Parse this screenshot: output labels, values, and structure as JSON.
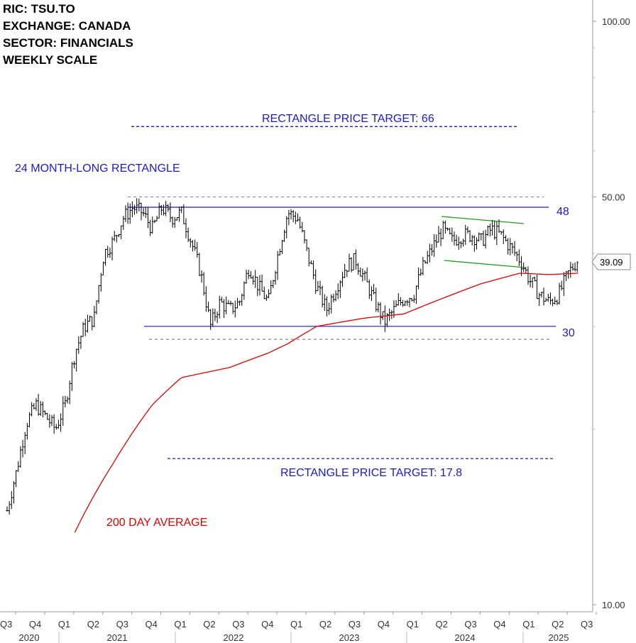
{
  "header": {
    "ric": "RIC:  TSU.TO",
    "exchange": "EXCHANGE:  CANADA",
    "sector": "SECTOR: FINANCIALS",
    "scale": "WEEKLY SCALE"
  },
  "chart_data": {
    "type": "candlestick",
    "y_scale": "log",
    "ylim": [
      10,
      100
    ],
    "y_ticks": [
      {
        "value": 10,
        "label": "10.00"
      },
      {
        "value": 50,
        "label": "50.00"
      },
      {
        "value": 100,
        "label": "100.00"
      }
    ],
    "last_price": {
      "value": 39.09,
      "label": "39.09"
    },
    "x_quarter_ticks": [
      "Q3",
      "Q4",
      "Q1",
      "Q2",
      "Q3",
      "Q4",
      "Q1",
      "Q2",
      "Q3",
      "Q4",
      "Q1",
      "Q2",
      "Q3",
      "Q4",
      "Q1",
      "Q2",
      "Q3",
      "Q4",
      "Q1",
      "Q2",
      "Q3"
    ],
    "x_year_labels": [
      "2020",
      "2021",
      "2022",
      "2023",
      "2024",
      "2025"
    ],
    "colors": {
      "price": "#000000",
      "ma": "#e00000",
      "rectangle": "#1a1ad0",
      "channel": "#1e9e1e",
      "target": "#1a1ad0",
      "text": "#1a1ad0",
      "ma_text": "#e00000"
    },
    "annotations": {
      "rectangle_label": "24 MONTH-LONG RECTANGLE",
      "target_up_label": "RECTANGLE PRICE TARGET: 66",
      "target_down_label": "RECTANGLE PRICE TARGET: 17.8",
      "ma_label": "200 DAY AVERAGE",
      "upper_label": "48",
      "lower_label": "30"
    },
    "levels": {
      "upper": 48,
      "lower": 30,
      "target_up": 66,
      "target_down": 17.8,
      "upper_dashed": 50,
      "lower_dashed": 28.5
    },
    "price_path": [
      [
        "2020-07",
        14.5
      ],
      [
        "2020-08",
        17
      ],
      [
        "2020-09",
        20.5
      ],
      [
        "2020-10",
        22
      ],
      [
        "2020-11",
        21
      ],
      [
        "2020-12",
        20
      ],
      [
        "2021-01",
        22
      ],
      [
        "2021-02",
        27
      ],
      [
        "2021-03",
        30
      ],
      [
        "2021-04",
        31
      ],
      [
        "2021-05",
        40
      ],
      [
        "2021-06",
        42
      ],
      [
        "2021-07",
        46
      ],
      [
        "2021-08",
        48
      ],
      [
        "2021-09",
        47
      ],
      [
        "2021-10",
        44
      ],
      [
        "2021-11",
        48
      ],
      [
        "2021-12",
        46
      ],
      [
        "2022-01",
        47
      ],
      [
        "2022-02",
        42
      ],
      [
        "2022-03",
        37
      ],
      [
        "2022-04",
        30
      ],
      [
        "2022-05",
        33
      ],
      [
        "2022-06",
        32
      ],
      [
        "2022-07",
        33
      ],
      [
        "2022-08",
        38
      ],
      [
        "2022-09",
        35
      ],
      [
        "2022-10",
        33
      ],
      [
        "2022-11",
        40
      ],
      [
        "2022-12",
        47
      ],
      [
        "2023-01",
        46
      ],
      [
        "2023-02",
        40
      ],
      [
        "2023-03",
        35
      ],
      [
        "2023-04",
        32
      ],
      [
        "2023-05",
        35
      ],
      [
        "2023-06",
        38
      ],
      [
        "2023-07",
        39
      ],
      [
        "2023-08",
        36
      ],
      [
        "2023-09",
        33
      ],
      [
        "2023-10",
        30.5
      ],
      [
        "2023-11",
        32
      ],
      [
        "2023-12",
        33.5
      ],
      [
        "2024-01",
        34
      ],
      [
        "2024-02",
        38
      ],
      [
        "2024-03",
        41
      ],
      [
        "2024-04",
        44
      ],
      [
        "2024-05",
        42
      ],
      [
        "2024-06",
        43
      ],
      [
        "2024-07",
        43
      ],
      [
        "2024-08",
        42
      ],
      [
        "2024-09",
        44
      ],
      [
        "2024-10",
        43
      ],
      [
        "2024-11",
        41
      ],
      [
        "2024-12",
        39
      ],
      [
        "2025-01",
        36
      ],
      [
        "2025-02",
        34
      ],
      [
        "2025-03",
        33
      ],
      [
        "2025-04",
        34
      ],
      [
        "2025-05",
        37
      ],
      [
        "2025-06",
        39.09
      ]
    ],
    "ma_path": [
      [
        "2021-02",
        13.3
      ],
      [
        "2021-06",
        17.5
      ],
      [
        "2021-10",
        22
      ],
      [
        "2022-01",
        24.5
      ],
      [
        "2022-06",
        25.5
      ],
      [
        "2022-10",
        27
      ],
      [
        "2022-12",
        28
      ],
      [
        "2023-03",
        30
      ],
      [
        "2023-08",
        31
      ],
      [
        "2023-12",
        31.5
      ],
      [
        "2024-03",
        33
      ],
      [
        "2024-08",
        35.5
      ],
      [
        "2024-12",
        37
      ],
      [
        "2025-03",
        36.8
      ],
      [
        "2025-06",
        37
      ]
    ]
  }
}
